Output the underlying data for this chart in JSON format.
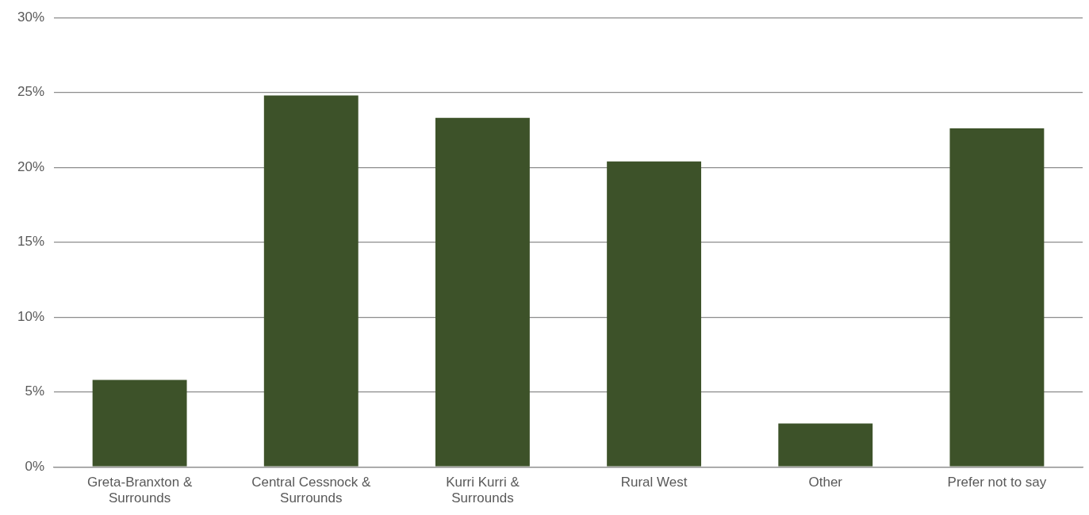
{
  "chart_data": {
    "type": "bar",
    "categories": [
      "Greta-Branxton & Surrounds",
      "Central Cessnock & Surrounds",
      "Kurri Kurri & Surrounds",
      "Rural West",
      "Other",
      "Prefer not to say"
    ],
    "values": [
      5.8,
      24.8,
      23.3,
      20.4,
      2.9,
      22.6
    ],
    "color": "#3d5229",
    "ylim": [
      0,
      30
    ],
    "yticks": [
      {
        "value": 0,
        "label": "0%"
      },
      {
        "value": 5,
        "label": "5%"
      },
      {
        "value": 10,
        "label": "10%"
      },
      {
        "value": 15,
        "label": "15%"
      },
      {
        "value": 20,
        "label": "20%"
      },
      {
        "value": 25,
        "label": "25%"
      },
      {
        "value": 30,
        "label": "30%"
      }
    ],
    "grid": "y"
  }
}
